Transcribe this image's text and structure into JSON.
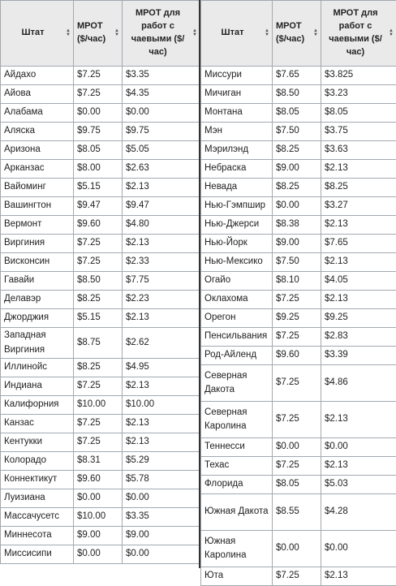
{
  "left": {
    "headers": [
      "Штат",
      "МРОТ ($/час)",
      "МРОТ для работ с чаевыми ($/час)"
    ],
    "rows": [
      [
        "Айдахо",
        "$7.25",
        "$3.35"
      ],
      [
        "Айова",
        "$7.25",
        "$4.35"
      ],
      [
        "Алабама",
        "$0.00",
        "$0.00"
      ],
      [
        "Аляска",
        "$9.75",
        "$9.75"
      ],
      [
        "Аризона",
        "$8.05",
        "$5.05"
      ],
      [
        "Арканзас",
        "$8.00",
        "$2.63"
      ],
      [
        "Вайоминг",
        "$5.15",
        "$2.13"
      ],
      [
        "Вашингтон",
        "$9.47",
        "$9.47"
      ],
      [
        "Вермонт",
        "$9.60",
        "$4.80"
      ],
      [
        "Виргиния",
        "$7.25",
        "$2.13"
      ],
      [
        "Висконсин",
        "$7.25",
        "$2.33"
      ],
      [
        "Гавайи",
        "$8.50",
        "$7.75"
      ],
      [
        "Делавэр",
        "$8.25",
        "$2.23"
      ],
      [
        "Джорджия",
        "$5.15",
        "$2.13"
      ],
      [
        "Западная Виргиния",
        "$8.75",
        "$2.62"
      ],
      [
        "Иллинойс",
        "$8.25",
        "$4.95"
      ],
      [
        "Индиана",
        "$7.25",
        "$2.13"
      ],
      [
        "Калифорния",
        "$10.00",
        "$10.00"
      ],
      [
        "Канзас",
        "$7.25",
        "$2.13"
      ],
      [
        "Кентукки",
        "$7.25",
        "$2.13"
      ],
      [
        "Колорадо",
        "$8.31",
        "$5.29"
      ],
      [
        "Коннектикут",
        "$9.60",
        "$5.78"
      ],
      [
        "Луизиана",
        "$0.00",
        "$0.00"
      ],
      [
        "Массачусетс",
        "$10.00",
        "$3.35"
      ],
      [
        "Миннесота",
        "$9.00",
        "$9.00"
      ],
      [
        "Миссисипи",
        "$0.00",
        "$0.00"
      ]
    ]
  },
  "right": {
    "headers": [
      "Штат",
      "МРОТ ($/час)",
      "МРОТ для работ с чаевыми ($/час)"
    ],
    "rows": [
      [
        "Миссури",
        "$7.65",
        "$3.825"
      ],
      [
        "Мичиган",
        "$8.50",
        "$3.23"
      ],
      [
        "Монтана",
        "$8.05",
        "$8.05"
      ],
      [
        "Мэн",
        "$7.50",
        "$3.75"
      ],
      [
        "Мэрилэнд",
        "$8.25",
        "$3.63"
      ],
      [
        "Небраска",
        "$9.00",
        "$2.13"
      ],
      [
        "Невада",
        "$8.25",
        "$8.25"
      ],
      [
        "Нью-Гэмпшир",
        "$0.00",
        "$3.27"
      ],
      [
        "Нью-Джерси",
        "$8.38",
        "$2.13"
      ],
      [
        "Нью-Йорк",
        "$9.00",
        "$7.65"
      ],
      [
        "Нью-Мексико",
        "$7.50",
        "$2.13"
      ],
      [
        "Огайо",
        "$8.10",
        "$4.05"
      ],
      [
        "Оклахома",
        "$7.25",
        "$2.13"
      ],
      [
        "Орегон",
        "$9.25",
        "$9.25"
      ],
      [
        "Пенсильвания",
        "$7.25",
        "$2.83"
      ],
      [
        "Род-Айленд",
        "$9.60",
        "$3.39"
      ],
      [
        "Северная Дакота",
        "$7.25",
        "$4.86"
      ],
      [
        "Северная Каролина",
        "$7.25",
        "$2.13"
      ],
      [
        "Теннесси",
        "$0.00",
        "$0.00"
      ],
      [
        "Техас",
        "$7.25",
        "$2.13"
      ],
      [
        "Флорида",
        "$8.05",
        "$5.03"
      ],
      [
        "Южная Дакота",
        "$8.55",
        "$4.28"
      ],
      [
        "Южная Каролина",
        "$0.00",
        "$0.00"
      ],
      [
        "Юта",
        "$7.25",
        "$2.13"
      ]
    ]
  }
}
